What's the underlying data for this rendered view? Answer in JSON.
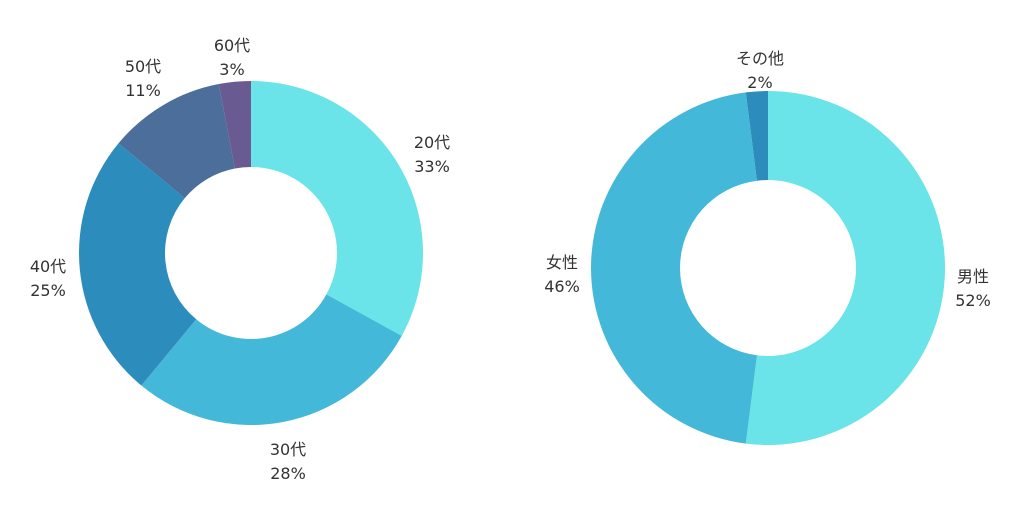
{
  "chart_data": [
    {
      "type": "pie",
      "donut": true,
      "categories": [
        "20代",
        "30代",
        "40代",
        "50代",
        "60代"
      ],
      "values": [
        33,
        28,
        25,
        11,
        3
      ],
      "value_labels": [
        "33%",
        "28%",
        "25%",
        "11%",
        "3%"
      ],
      "colors": [
        "#6ae4e8",
        "#44b8d8",
        "#2c8cbc",
        "#4b6e9a",
        "#6a5a92"
      ],
      "title": ""
    },
    {
      "type": "pie",
      "donut": true,
      "categories": [
        "男性",
        "女性",
        "その他"
      ],
      "values": [
        52,
        46,
        2
      ],
      "value_labels": [
        "52%",
        "46%",
        "2%"
      ],
      "colors": [
        "#6ae4e8",
        "#44b8d8",
        "#2c8cbc"
      ],
      "title": ""
    }
  ]
}
